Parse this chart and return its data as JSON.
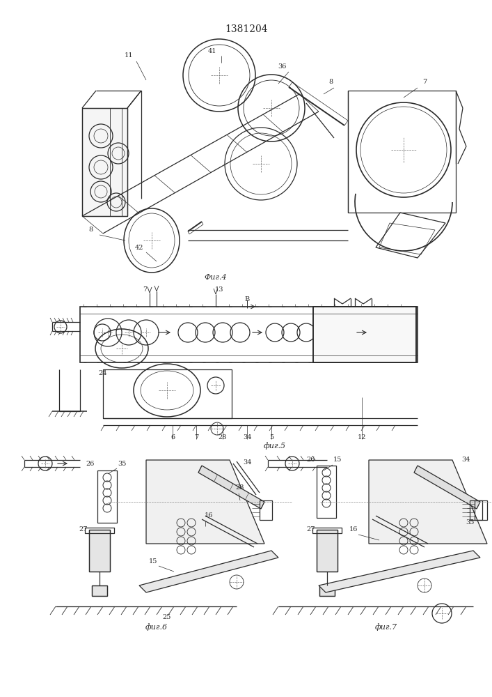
{
  "title": "1381204",
  "bg_color": "#ffffff",
  "line_color": "#2a2a2a",
  "fig4_label": "Фиг.4",
  "fig5_label": "фиг.5",
  "fig6_label": "фиг.6",
  "fig7_label": "фиг.7"
}
